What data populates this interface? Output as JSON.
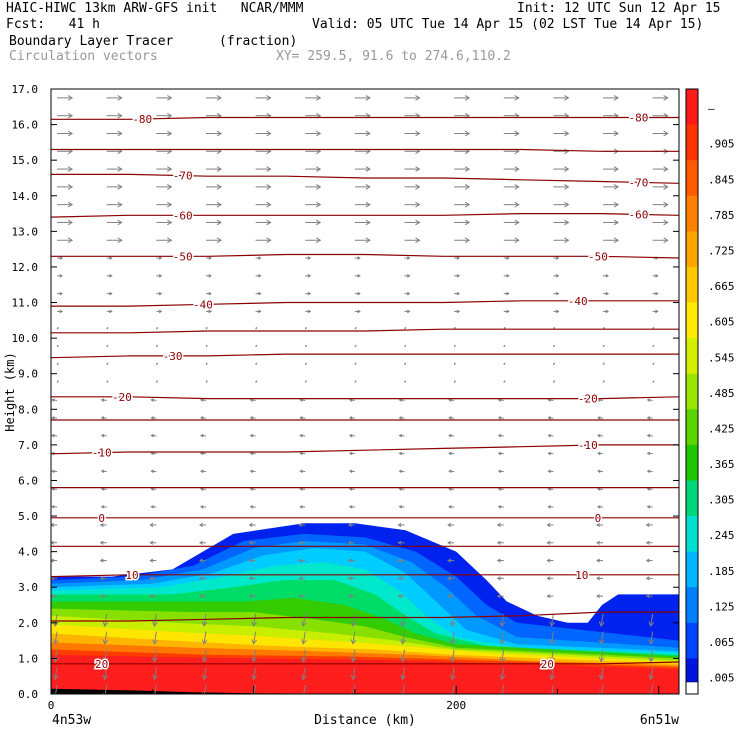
{
  "header": {
    "title_left": "HAIC-HIWC 13km ARW-GFS init   NCAR/MMM",
    "init": "Init: 12 UTC Sun 12 Apr 15",
    "fcst": "Fcst:   41 h",
    "valid": "Valid: 05 UTC Tue 14 Apr 15 (02 LST Tue 14 Apr 15)",
    "field_name": "Boundary Layer Tracer",
    "field_units": "(fraction)",
    "vectors_name": "Circulation vectors",
    "xy_range": "XY= 259.5, 91.6 to 274.6,110.2"
  },
  "colors": {
    "contour": "#8b0000",
    "vector": "#808080",
    "text_gray": "#999999"
  },
  "chart_data": {
    "type": "heatmap",
    "ylabel": "Height (km)",
    "xlabel": "Distance (km)",
    "ylim": [
      0,
      17
    ],
    "xlim": [
      0,
      310
    ],
    "y_ticks": [
      "0.0",
      "1.0",
      "2.0",
      "3.0",
      "4.0",
      "5.0",
      "6.0",
      "7.0",
      "8.0",
      "9.0",
      "10.0",
      "11.0",
      "12.0",
      "13.0",
      "14.0",
      "15.0",
      "16.0",
      "17.0"
    ],
    "x_ticks": [
      {
        "value": 0,
        "label": "0"
      },
      {
        "value": 200,
        "label": "200"
      }
    ],
    "x_endpoints": {
      "left": "4n53w",
      "right": "6n51w"
    },
    "colorbar": {
      "labels": [
        "–",
        ".905",
        ".845",
        ".785",
        ".725",
        ".665",
        ".605",
        ".545",
        ".485",
        ".425",
        ".365",
        ".305",
        ".245",
        ".185",
        ".125",
        ".065",
        ".005"
      ],
      "colors": [
        "#ff1a1a",
        "#ff3300",
        "#ff5a00",
        "#ff8000",
        "#ffa500",
        "#ffc800",
        "#ffeb00",
        "#d4ee00",
        "#9ae600",
        "#5cd400",
        "#1fc800",
        "#00d77a",
        "#00e0d0",
        "#00b4ff",
        "#0080ff",
        "#0044ff",
        "#0014e0"
      ]
    },
    "tracer_bands": [
      {
        "color": "#0022ee",
        "top": [
          [
            0,
            3.3
          ],
          [
            30,
            3.3
          ],
          [
            60,
            3.5
          ],
          [
            90,
            4.5
          ],
          [
            125,
            4.8
          ],
          [
            150,
            4.8
          ],
          [
            175,
            4.6
          ],
          [
            200,
            4.0
          ],
          [
            215,
            3.2
          ],
          [
            225,
            2.6
          ],
          [
            240,
            2.2
          ],
          [
            255,
            2.0
          ],
          [
            265,
            2.0
          ],
          [
            272,
            2.5
          ],
          [
            280,
            2.8
          ],
          [
            310,
            2.8
          ]
        ]
      },
      {
        "color": "#0066ff",
        "top": [
          [
            0,
            3.2
          ],
          [
            40,
            3.3
          ],
          [
            70,
            3.6
          ],
          [
            95,
            4.3
          ],
          [
            125,
            4.5
          ],
          [
            155,
            4.4
          ],
          [
            180,
            4.0
          ],
          [
            200,
            3.3
          ],
          [
            215,
            2.5
          ],
          [
            230,
            2.0
          ],
          [
            310,
            1.5
          ]
        ]
      },
      {
        "color": "#0099ff",
        "top": [
          [
            0,
            3.1
          ],
          [
            45,
            3.2
          ],
          [
            75,
            3.5
          ],
          [
            100,
            4.1
          ],
          [
            125,
            4.3
          ],
          [
            155,
            4.2
          ],
          [
            178,
            3.7
          ],
          [
            195,
            3.0
          ],
          [
            210,
            2.2
          ],
          [
            230,
            1.6
          ],
          [
            310,
            1.3
          ]
        ]
      },
      {
        "color": "#00ccff",
        "top": [
          [
            0,
            3.0
          ],
          [
            50,
            3.1
          ],
          [
            80,
            3.4
          ],
          [
            105,
            3.9
          ],
          [
            130,
            4.1
          ],
          [
            155,
            4.0
          ],
          [
            175,
            3.4
          ],
          [
            190,
            2.6
          ],
          [
            205,
            1.8
          ],
          [
            230,
            1.4
          ],
          [
            310,
            1.2
          ]
        ]
      },
      {
        "color": "#00e8cc",
        "top": [
          [
            0,
            2.9
          ],
          [
            55,
            3.0
          ],
          [
            85,
            3.3
          ],
          [
            110,
            3.6
          ],
          [
            135,
            3.7
          ],
          [
            155,
            3.5
          ],
          [
            172,
            2.9
          ],
          [
            185,
            2.2
          ],
          [
            200,
            1.6
          ],
          [
            230,
            1.3
          ],
          [
            310,
            1.15
          ]
        ]
      },
      {
        "color": "#00dd66",
        "top": [
          [
            0,
            2.8
          ],
          [
            60,
            2.8
          ],
          [
            90,
            3.0
          ],
          [
            115,
            3.2
          ],
          [
            140,
            3.2
          ],
          [
            160,
            2.8
          ],
          [
            175,
            2.2
          ],
          [
            190,
            1.7
          ],
          [
            215,
            1.35
          ],
          [
            310,
            1.1
          ]
        ]
      },
      {
        "color": "#33cc00",
        "top": [
          [
            0,
            2.6
          ],
          [
            65,
            2.6
          ],
          [
            95,
            2.6
          ],
          [
            120,
            2.7
          ],
          [
            145,
            2.5
          ],
          [
            165,
            2.1
          ],
          [
            180,
            1.7
          ],
          [
            200,
            1.4
          ],
          [
            310,
            1.05
          ]
        ]
      },
      {
        "color": "#88e000",
        "top": [
          [
            0,
            2.4
          ],
          [
            70,
            2.3
          ],
          [
            100,
            2.3
          ],
          [
            130,
            2.1
          ],
          [
            155,
            1.9
          ],
          [
            175,
            1.6
          ],
          [
            200,
            1.3
          ],
          [
            310,
            1.0
          ]
        ]
      },
      {
        "color": "#c8ee00",
        "top": [
          [
            0,
            2.2
          ],
          [
            60,
            2.0
          ],
          [
            100,
            1.9
          ],
          [
            140,
            1.7
          ],
          [
            170,
            1.5
          ],
          [
            200,
            1.25
          ],
          [
            310,
            0.95
          ]
        ]
      },
      {
        "color": "#ffe600",
        "top": [
          [
            0,
            1.95
          ],
          [
            60,
            1.75
          ],
          [
            110,
            1.6
          ],
          [
            150,
            1.45
          ],
          [
            185,
            1.3
          ],
          [
            215,
            1.15
          ],
          [
            310,
            0.9
          ]
        ]
      },
      {
        "color": "#ffb400",
        "top": [
          [
            0,
            1.7
          ],
          [
            60,
            1.5
          ],
          [
            110,
            1.35
          ],
          [
            160,
            1.25
          ],
          [
            200,
            1.1
          ],
          [
            240,
            1.0
          ],
          [
            310,
            0.85
          ]
        ]
      },
      {
        "color": "#ff7800",
        "top": [
          [
            0,
            1.45
          ],
          [
            70,
            1.3
          ],
          [
            130,
            1.2
          ],
          [
            180,
            1.1
          ],
          [
            230,
            0.95
          ],
          [
            310,
            0.8
          ]
        ]
      },
      {
        "color": "#ff3c00",
        "top": [
          [
            0,
            1.25
          ],
          [
            80,
            1.1
          ],
          [
            150,
            1.05
          ],
          [
            210,
            0.95
          ],
          [
            310,
            0.75
          ]
        ]
      },
      {
        "color": "#ff1e1e",
        "top": [
          [
            0,
            1.1
          ],
          [
            100,
            1.0
          ],
          [
            170,
            0.95
          ],
          [
            230,
            0.85
          ],
          [
            310,
            0.7
          ]
        ]
      }
    ],
    "terrain": [
      [
        0,
        0.15
      ],
      [
        40,
        0.1
      ],
      [
        70,
        0.05
      ],
      [
        100,
        0.02
      ],
      [
        150,
        0
      ],
      [
        200,
        0
      ],
      [
        250,
        0
      ],
      [
        310,
        0
      ]
    ],
    "isotherms": [
      {
        "y": [
          16.15,
          16.15,
          16.2,
          16.2,
          16.2,
          16.2,
          16.2,
          16.2,
          16.2
        ],
        "labels": [
          {
            "x": 45,
            "text": "-80"
          },
          {
            "x": 290,
            "text": "-80"
          }
        ]
      },
      {
        "y": [
          15.3,
          15.3,
          15.3,
          15.3,
          15.3,
          15.3,
          15.3,
          15.25,
          15.25
        ],
        "labels": []
      },
      {
        "y": [
          14.6,
          14.6,
          14.55,
          14.55,
          14.5,
          14.5,
          14.45,
          14.4,
          14.35
        ],
        "labels": [
          {
            "x": 65,
            "text": "-70"
          },
          {
            "x": 290,
            "text": "-70"
          }
        ]
      },
      {
        "y": [
          13.4,
          13.45,
          13.45,
          13.45,
          13.45,
          13.45,
          13.5,
          13.5,
          13.45
        ],
        "labels": [
          {
            "x": 65,
            "text": "-60"
          },
          {
            "x": 290,
            "text": "-60"
          }
        ]
      },
      {
        "y": [
          12.3,
          12.3,
          12.3,
          12.35,
          12.35,
          12.3,
          12.3,
          12.3,
          12.25
        ],
        "labels": [
          {
            "x": 65,
            "text": "-50"
          },
          {
            "x": 270,
            "text": "-50"
          }
        ]
      },
      {
        "y": [
          10.9,
          10.9,
          10.95,
          11.0,
          11.0,
          11.0,
          11.05,
          11.05,
          11.05
        ],
        "labels": [
          {
            "x": 75,
            "text": "-40"
          },
          {
            "x": 260,
            "text": "-40"
          }
        ]
      },
      {
        "y": [
          10.15,
          10.15,
          10.2,
          10.2,
          10.2,
          10.25,
          10.25,
          10.25,
          10.25
        ],
        "labels": []
      },
      {
        "y": [
          9.45,
          9.5,
          9.5,
          9.55,
          9.55,
          9.55,
          9.55,
          9.55,
          9.55
        ],
        "labels": [
          {
            "x": 60,
            "text": "-30"
          }
        ]
      },
      {
        "y": [
          8.35,
          8.35,
          8.3,
          8.3,
          8.3,
          8.3,
          8.3,
          8.3,
          8.35
        ],
        "labels": [
          {
            "x": 35,
            "text": "-20"
          },
          {
            "x": 265,
            "text": "-20"
          }
        ]
      },
      {
        "y": [
          7.7,
          7.7,
          7.7,
          7.7,
          7.7,
          7.7,
          7.7,
          7.7,
          7.7
        ],
        "labels": []
      },
      {
        "y": [
          6.75,
          6.8,
          6.8,
          6.8,
          6.85,
          6.9,
          6.95,
          7.0,
          7.0
        ],
        "labels": [
          {
            "x": 25,
            "text": "-10"
          },
          {
            "x": 265,
            "text": "-10"
          }
        ]
      },
      {
        "y": [
          5.8,
          5.8,
          5.8,
          5.8,
          5.8,
          5.8,
          5.8,
          5.8,
          5.8
        ],
        "labels": []
      },
      {
        "y": [
          4.95,
          4.95,
          4.95,
          4.95,
          4.95,
          4.95,
          4.95,
          4.95,
          4.95
        ],
        "labels": [
          {
            "x": 25,
            "text": "0"
          },
          {
            "x": 270,
            "text": "0"
          }
        ]
      },
      {
        "y": [
          4.15,
          4.15,
          4.15,
          4.15,
          4.15,
          4.15,
          4.15,
          4.15,
          4.15
        ],
        "labels": []
      },
      {
        "y": [
          3.3,
          3.35,
          3.35,
          3.35,
          3.35,
          3.35,
          3.35,
          3.35,
          3.35
        ],
        "labels": [
          {
            "x": 40,
            "text": "10"
          },
          {
            "x": 262,
            "text": "10"
          }
        ]
      },
      {
        "y": [
          2.05,
          2.05,
          2.1,
          2.15,
          2.15,
          2.15,
          2.2,
          2.3,
          2.3
        ],
        "labels": []
      },
      {
        "y": [
          0.85,
          0.85,
          0.85,
          0.85,
          0.85,
          0.85,
          0.85,
          0.85,
          0.9
        ],
        "labels": [
          {
            "x": 25,
            "text": "20"
          },
          {
            "x": 245,
            "text": "20"
          }
        ]
      }
    ]
  }
}
